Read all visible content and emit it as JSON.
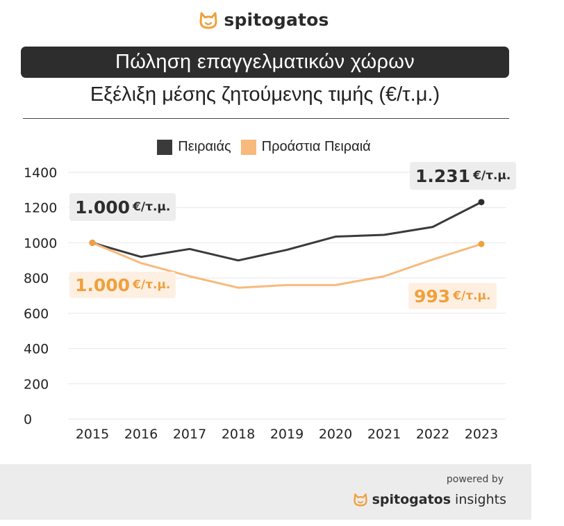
{
  "brand": {
    "name": "spitogatos",
    "accent": "#f0a03c",
    "dark": "#2d2d2d"
  },
  "header": {
    "title": "Πώληση επαγγελματικών χώρων",
    "subtitle": "Εξέλιξη μέσης ζητούμενης τιμής (€/τ.μ.)"
  },
  "footer": {
    "powered_by": "powered by",
    "brand_bold": "spitogatos",
    "brand_light": "insights"
  },
  "callouts": {
    "piraeus_start": {
      "value": "1.000",
      "unit": "€/τ.μ."
    },
    "piraeus_end": {
      "value": "1.231",
      "unit": "€/τ.μ."
    },
    "suburbs_start": {
      "value": "1.000",
      "unit": "€/τ.μ."
    },
    "suburbs_end": {
      "value": "993",
      "unit": "€/τ.μ."
    }
  },
  "chart_data": {
    "type": "line",
    "title": "Εξέλιξη μέσης ζητούμενης τιμής (€/τ.μ.)",
    "x": [
      "2015",
      "2016",
      "2017",
      "2018",
      "2019",
      "2020",
      "2021",
      "2022",
      "2023"
    ],
    "series": [
      {
        "name": "Πειραιάς",
        "color": "#3a3a3a",
        "values": [
          1000,
          920,
          965,
          900,
          960,
          1035,
          1045,
          1090,
          1231
        ]
      },
      {
        "name": "Προάστια Πειραιά",
        "color": "#f8b97c",
        "values": [
          1000,
          885,
          810,
          745,
          760,
          760,
          810,
          905,
          993
        ]
      }
    ],
    "yticks": [
      0,
      200,
      400,
      600,
      800,
      1000,
      1200,
      1400
    ],
    "ylim": [
      0,
      1400
    ],
    "grid": true,
    "legend": "top-center"
  }
}
